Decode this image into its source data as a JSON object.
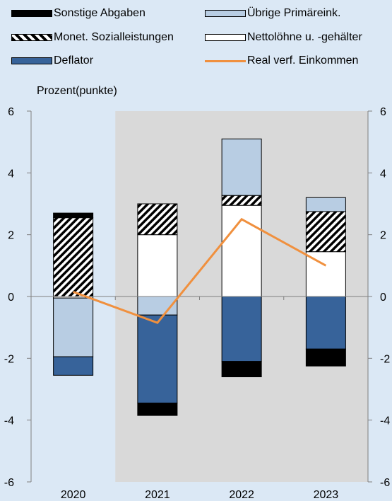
{
  "chart_data": {
    "type": "bar",
    "stacked": true,
    "ylabel": "Prozent(punkte)",
    "ylim": [
      -6,
      6
    ],
    "yticks": [
      -6,
      -4,
      -2,
      0,
      2,
      4,
      6
    ],
    "categories": [
      "2020",
      "2021",
      "2022",
      "2023"
    ],
    "shaded_categories": [
      "2021",
      "2022",
      "2023"
    ],
    "series": [
      {
        "name": "Nettolöhne u. -gehälter",
        "kind": "bar",
        "color": "#ffffff",
        "pattern": "solid",
        "values": [
          -0.05,
          2.0,
          2.95,
          1.45
        ]
      },
      {
        "name": "Monet. Sozialleistungen",
        "kind": "bar",
        "color": "#ffffff",
        "pattern": "hatch",
        "values": [
          2.55,
          1.0,
          0.32,
          1.3
        ]
      },
      {
        "name": "Übrige Primäreink.",
        "kind": "bar",
        "color": "#b8cde3",
        "pattern": "solid",
        "values": [
          -1.9,
          -0.6,
          1.83,
          0.45
        ]
      },
      {
        "name": "Deflator",
        "kind": "bar",
        "color": "#37639a",
        "pattern": "solid",
        "values": [
          -0.6,
          -2.85,
          -2.1,
          -1.7
        ]
      },
      {
        "name": "Sonstige Abgaben",
        "kind": "bar",
        "color": "#000000",
        "pattern": "solid",
        "values": [
          0.15,
          -0.4,
          -0.5,
          -0.55
        ]
      },
      {
        "name": "Real verf. Einkommen",
        "kind": "line",
        "color": "#f0903e",
        "values": [
          0.15,
          -0.85,
          2.5,
          1.0
        ]
      }
    ]
  },
  "legend": {
    "items": [
      {
        "label": "Sonstige Abgaben",
        "swatch": "solid-black"
      },
      {
        "label": "Übrige Primäreink.",
        "swatch": "solid-lightblue"
      },
      {
        "label": "Monet. Sozialleistungen",
        "swatch": "hatch"
      },
      {
        "label": "Nettolöhne u. -gehälter",
        "swatch": "solid-white"
      },
      {
        "label": "Deflator",
        "swatch": "solid-darkblue"
      },
      {
        "label": "Real verf. Einkommen",
        "swatch": "line-orange"
      }
    ]
  },
  "colors": {
    "background": "#dbe8f5",
    "plot_shade": "#d9d9d9",
    "axis": "#808080"
  }
}
